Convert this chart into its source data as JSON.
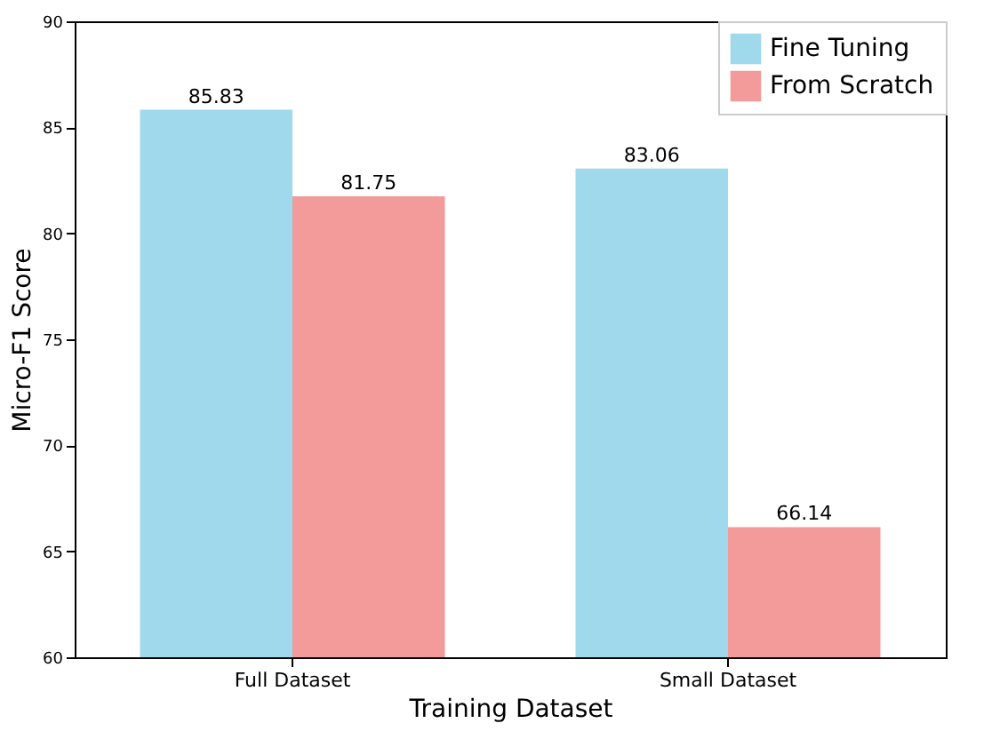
{
  "chart_data": {
    "type": "bar",
    "xlabel": "Training Dataset",
    "ylabel": "Micro-F1 Score",
    "categories": [
      "Full Dataset",
      "Small Dataset"
    ],
    "series": [
      {
        "name": "Fine Tuning",
        "color": "#a0d8ec",
        "values": [
          85.83,
          83.06
        ]
      },
      {
        "name": "From Scratch",
        "color": "#f29b9a",
        "values": [
          81.75,
          66.14
        ]
      }
    ],
    "ylim": [
      60,
      90
    ],
    "yticks": [
      60,
      65,
      70,
      75,
      80,
      85,
      90
    ],
    "data_labels": true,
    "legend": "top right",
    "grid": false
  }
}
